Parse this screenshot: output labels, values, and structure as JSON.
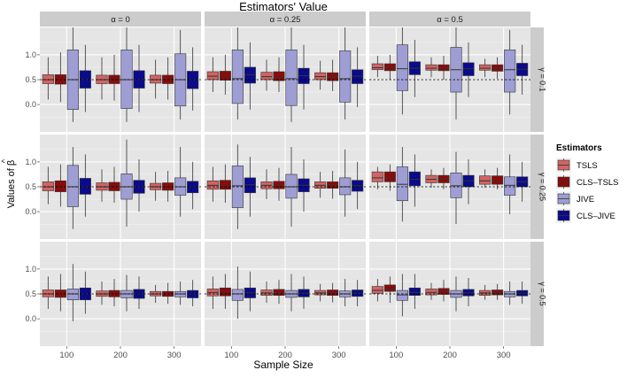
{
  "chart_data": {
    "type": "boxplot-facet",
    "title": "Estimators' Value",
    "xlabel": "Sample Size",
    "ylabel": "Values of β̂",
    "ylabel_base": "Values of β",
    "ylabel_hat": "^",
    "ylim": [
      -0.55,
      1.55
    ],
    "yticks": [
      0.0,
      0.5,
      1.0
    ],
    "ytick_labels": [
      "0.0",
      "0.5",
      "1.0"
    ],
    "categories": [
      "100",
      "200",
      "300"
    ],
    "reference_line": 0.5,
    "col_facets": [
      "α = 0",
      "α = 0.25",
      "α = 0.5"
    ],
    "row_facets": [
      "γ = 0.1",
      "γ = 0.25",
      "γ = 0.5"
    ],
    "legend": {
      "title": "Estimators",
      "entries": [
        {
          "name": "TSLS",
          "color": "#d16464"
        },
        {
          "name": "CLS–TSLS",
          "color": "#8c0a0a"
        },
        {
          "name": "JIVE",
          "color": "#9e9ed4"
        },
        {
          "name": "CLS–JIVE",
          "color": "#0a0a8c"
        }
      ]
    },
    "panels": [
      {
        "row": 0,
        "col": 0,
        "boxes": [
          [
            [
              0.1,
              0.42,
              0.5,
              0.6,
              0.95
            ],
            [
              0.05,
              0.41,
              0.49,
              0.6,
              1.05
            ],
            [
              -0.35,
              -0.1,
              0.5,
              1.1,
              1.55
            ],
            [
              -0.15,
              0.33,
              0.5,
              0.68,
              1.2
            ]
          ],
          [
            [
              0.1,
              0.42,
              0.5,
              0.59,
              0.95
            ],
            [
              0.08,
              0.42,
              0.5,
              0.59,
              1.0
            ],
            [
              -0.35,
              -0.08,
              0.5,
              1.1,
              1.55
            ],
            [
              -0.15,
              0.33,
              0.5,
              0.68,
              1.2
            ]
          ],
          [
            [
              0.12,
              0.43,
              0.5,
              0.59,
              0.9
            ],
            [
              0.1,
              0.42,
              0.5,
              0.59,
              0.95
            ],
            [
              -0.3,
              -0.03,
              0.5,
              1.02,
              1.5
            ],
            [
              -0.12,
              0.32,
              0.5,
              0.67,
              1.15
            ]
          ]
        ]
      },
      {
        "row": 0,
        "col": 1,
        "boxes": [
          [
            [
              0.25,
              0.5,
              0.57,
              0.66,
              0.95
            ],
            [
              0.2,
              0.49,
              0.57,
              0.67,
              1.0
            ],
            [
              -0.3,
              0.02,
              0.52,
              1.1,
              1.55
            ],
            [
              -0.1,
              0.43,
              0.6,
              0.75,
              1.25
            ]
          ],
          [
            [
              0.28,
              0.5,
              0.56,
              0.65,
              0.9
            ],
            [
              0.25,
              0.48,
              0.56,
              0.66,
              0.95
            ],
            [
              -0.35,
              -0.02,
              0.52,
              1.1,
              1.55
            ],
            [
              -0.1,
              0.42,
              0.58,
              0.73,
              1.2
            ]
          ],
          [
            [
              0.3,
              0.5,
              0.56,
              0.64,
              0.88
            ],
            [
              0.27,
              0.48,
              0.56,
              0.64,
              0.9
            ],
            [
              -0.3,
              0.05,
              0.52,
              1.08,
              1.55
            ],
            [
              -0.05,
              0.42,
              0.57,
              0.7,
              1.15
            ]
          ]
        ]
      },
      {
        "row": 0,
        "col": 2,
        "boxes": [
          [
            [
              0.55,
              0.7,
              0.74,
              0.82,
              0.98
            ],
            [
              0.5,
              0.68,
              0.74,
              0.82,
              1.0
            ],
            [
              -0.2,
              0.28,
              0.72,
              1.2,
              1.55
            ],
            [
              0.15,
              0.6,
              0.73,
              0.86,
              1.3
            ]
          ],
          [
            [
              0.55,
              0.69,
              0.73,
              0.8,
              0.95
            ],
            [
              0.5,
              0.68,
              0.73,
              0.8,
              0.98
            ],
            [
              -0.3,
              0.25,
              0.7,
              1.15,
              1.55
            ],
            [
              0.15,
              0.58,
              0.72,
              0.84,
              1.25
            ]
          ],
          [
            [
              0.55,
              0.69,
              0.73,
              0.8,
              0.92
            ],
            [
              0.52,
              0.67,
              0.72,
              0.8,
              0.95
            ],
            [
              -0.2,
              0.25,
              0.7,
              1.1,
              1.5
            ],
            [
              0.2,
              0.58,
              0.71,
              0.83,
              1.2
            ]
          ]
        ]
      },
      {
        "row": 1,
        "col": 0,
        "boxes": [
          [
            [
              0.15,
              0.42,
              0.5,
              0.6,
              0.9
            ],
            [
              0.1,
              0.4,
              0.5,
              0.62,
              0.95
            ],
            [
              -0.35,
              0.1,
              0.5,
              0.93,
              1.3
            ],
            [
              -0.1,
              0.35,
              0.5,
              0.67,
              1.15
            ]
          ],
          [
            [
              0.2,
              0.43,
              0.5,
              0.58,
              0.85
            ],
            [
              0.18,
              0.42,
              0.5,
              0.59,
              0.9
            ],
            [
              -0.3,
              0.25,
              0.5,
              0.76,
              1.45
            ],
            [
              0.0,
              0.37,
              0.5,
              0.63,
              1.05
            ]
          ],
          [
            [
              0.22,
              0.44,
              0.5,
              0.57,
              0.8
            ],
            [
              0.2,
              0.43,
              0.5,
              0.58,
              0.82
            ],
            [
              -0.1,
              0.33,
              0.5,
              0.68,
              1.3
            ],
            [
              0.05,
              0.38,
              0.5,
              0.61,
              1.0
            ]
          ]
        ]
      },
      {
        "row": 1,
        "col": 1,
        "boxes": [
          [
            [
              0.2,
              0.45,
              0.53,
              0.62,
              0.9
            ],
            [
              0.18,
              0.45,
              0.53,
              0.63,
              0.95
            ],
            [
              -0.35,
              0.08,
              0.52,
              0.92,
              1.35
            ],
            [
              -0.1,
              0.38,
              0.54,
              0.68,
              1.1
            ]
          ],
          [
            [
              0.25,
              0.46,
              0.53,
              0.6,
              0.85
            ],
            [
              0.22,
              0.46,
              0.53,
              0.61,
              0.88
            ],
            [
              -0.3,
              0.27,
              0.5,
              0.75,
              1.3
            ],
            [
              0.0,
              0.4,
              0.53,
              0.66,
              1.05
            ]
          ],
          [
            [
              0.28,
              0.47,
              0.53,
              0.6,
              0.8
            ],
            [
              0.26,
              0.47,
              0.53,
              0.6,
              0.82
            ],
            [
              -0.1,
              0.34,
              0.5,
              0.68,
              1.25
            ],
            [
              0.05,
              0.41,
              0.52,
              0.63,
              1.0
            ]
          ]
        ]
      },
      {
        "row": 1,
        "col": 2,
        "boxes": [
          [
            [
              0.45,
              0.6,
              0.68,
              0.8,
              0.9
            ],
            [
              0.42,
              0.6,
              0.68,
              0.8,
              0.95
            ],
            [
              -0.2,
              0.22,
              0.55,
              0.9,
              1.3
            ],
            [
              0.1,
              0.52,
              0.65,
              0.8,
              1.15
            ]
          ],
          [
            [
              0.48,
              0.58,
              0.65,
              0.73,
              0.85
            ],
            [
              0.45,
              0.58,
              0.65,
              0.73,
              0.88
            ],
            [
              -0.25,
              0.28,
              0.52,
              0.78,
              1.2
            ],
            [
              0.15,
              0.5,
              0.62,
              0.73,
              1.05
            ]
          ],
          [
            [
              0.48,
              0.55,
              0.62,
              0.72,
              0.85
            ],
            [
              0.45,
              0.55,
              0.62,
              0.72,
              0.88
            ],
            [
              -0.05,
              0.33,
              0.53,
              0.7,
              1.15
            ],
            [
              0.2,
              0.5,
              0.6,
              0.7,
              1.0
            ]
          ]
        ]
      },
      {
        "row": 2,
        "col": 0,
        "boxes": [
          [
            [
              0.2,
              0.44,
              0.5,
              0.58,
              0.85
            ],
            [
              0.15,
              0.43,
              0.5,
              0.58,
              0.9
            ],
            [
              -0.05,
              0.38,
              0.5,
              0.6,
              1.1
            ],
            [
              0.1,
              0.38,
              0.5,
              0.62,
              0.95
            ]
          ],
          [
            [
              0.28,
              0.45,
              0.5,
              0.56,
              0.75
            ],
            [
              0.25,
              0.44,
              0.5,
              0.57,
              0.8
            ],
            [
              0.15,
              0.42,
              0.5,
              0.57,
              0.88
            ],
            [
              0.2,
              0.41,
              0.5,
              0.59,
              0.85
            ]
          ],
          [
            [
              0.32,
              0.46,
              0.5,
              0.55,
              0.68
            ],
            [
              0.3,
              0.45,
              0.5,
              0.55,
              0.72
            ],
            [
              0.28,
              0.44,
              0.5,
              0.55,
              0.75
            ],
            [
              0.25,
              0.42,
              0.5,
              0.57,
              0.78
            ]
          ]
        ]
      },
      {
        "row": 2,
        "col": 1,
        "boxes": [
          [
            [
              0.2,
              0.46,
              0.53,
              0.6,
              0.85
            ],
            [
              0.2,
              0.46,
              0.53,
              0.62,
              0.9
            ],
            [
              0.0,
              0.37,
              0.5,
              0.59,
              1.05
            ],
            [
              0.15,
              0.42,
              0.52,
              0.62,
              0.95
            ]
          ],
          [
            [
              0.32,
              0.47,
              0.52,
              0.58,
              0.75
            ],
            [
              0.3,
              0.47,
              0.52,
              0.59,
              0.78
            ],
            [
              0.15,
              0.43,
              0.5,
              0.57,
              0.9
            ],
            [
              0.2,
              0.44,
              0.51,
              0.59,
              0.85
            ]
          ],
          [
            [
              0.35,
              0.48,
              0.52,
              0.57,
              0.7
            ],
            [
              0.33,
              0.47,
              0.52,
              0.58,
              0.72
            ],
            [
              0.25,
              0.44,
              0.5,
              0.56,
              0.8
            ],
            [
              0.25,
              0.45,
              0.51,
              0.58,
              0.78
            ]
          ]
        ]
      },
      {
        "row": 2,
        "col": 2,
        "boxes": [
          [
            [
              0.35,
              0.51,
              0.57,
              0.65,
              0.8
            ],
            [
              0.32,
              0.55,
              0.6,
              0.68,
              0.85
            ],
            [
              0.05,
              0.37,
              0.48,
              0.57,
              0.9
            ],
            [
              0.2,
              0.47,
              0.53,
              0.62,
              0.9
            ]
          ],
          [
            [
              0.38,
              0.48,
              0.53,
              0.6,
              0.72
            ],
            [
              0.35,
              0.49,
              0.55,
              0.61,
              0.78
            ],
            [
              0.15,
              0.43,
              0.5,
              0.57,
              0.85
            ],
            [
              0.25,
              0.46,
              0.52,
              0.59,
              0.82
            ]
          ],
          [
            [
              0.38,
              0.47,
              0.52,
              0.57,
              0.68
            ],
            [
              0.38,
              0.48,
              0.53,
              0.58,
              0.7
            ],
            [
              0.28,
              0.44,
              0.5,
              0.55,
              0.75
            ],
            [
              0.3,
              0.46,
              0.51,
              0.57,
              0.75
            ]
          ]
        ]
      }
    ]
  }
}
